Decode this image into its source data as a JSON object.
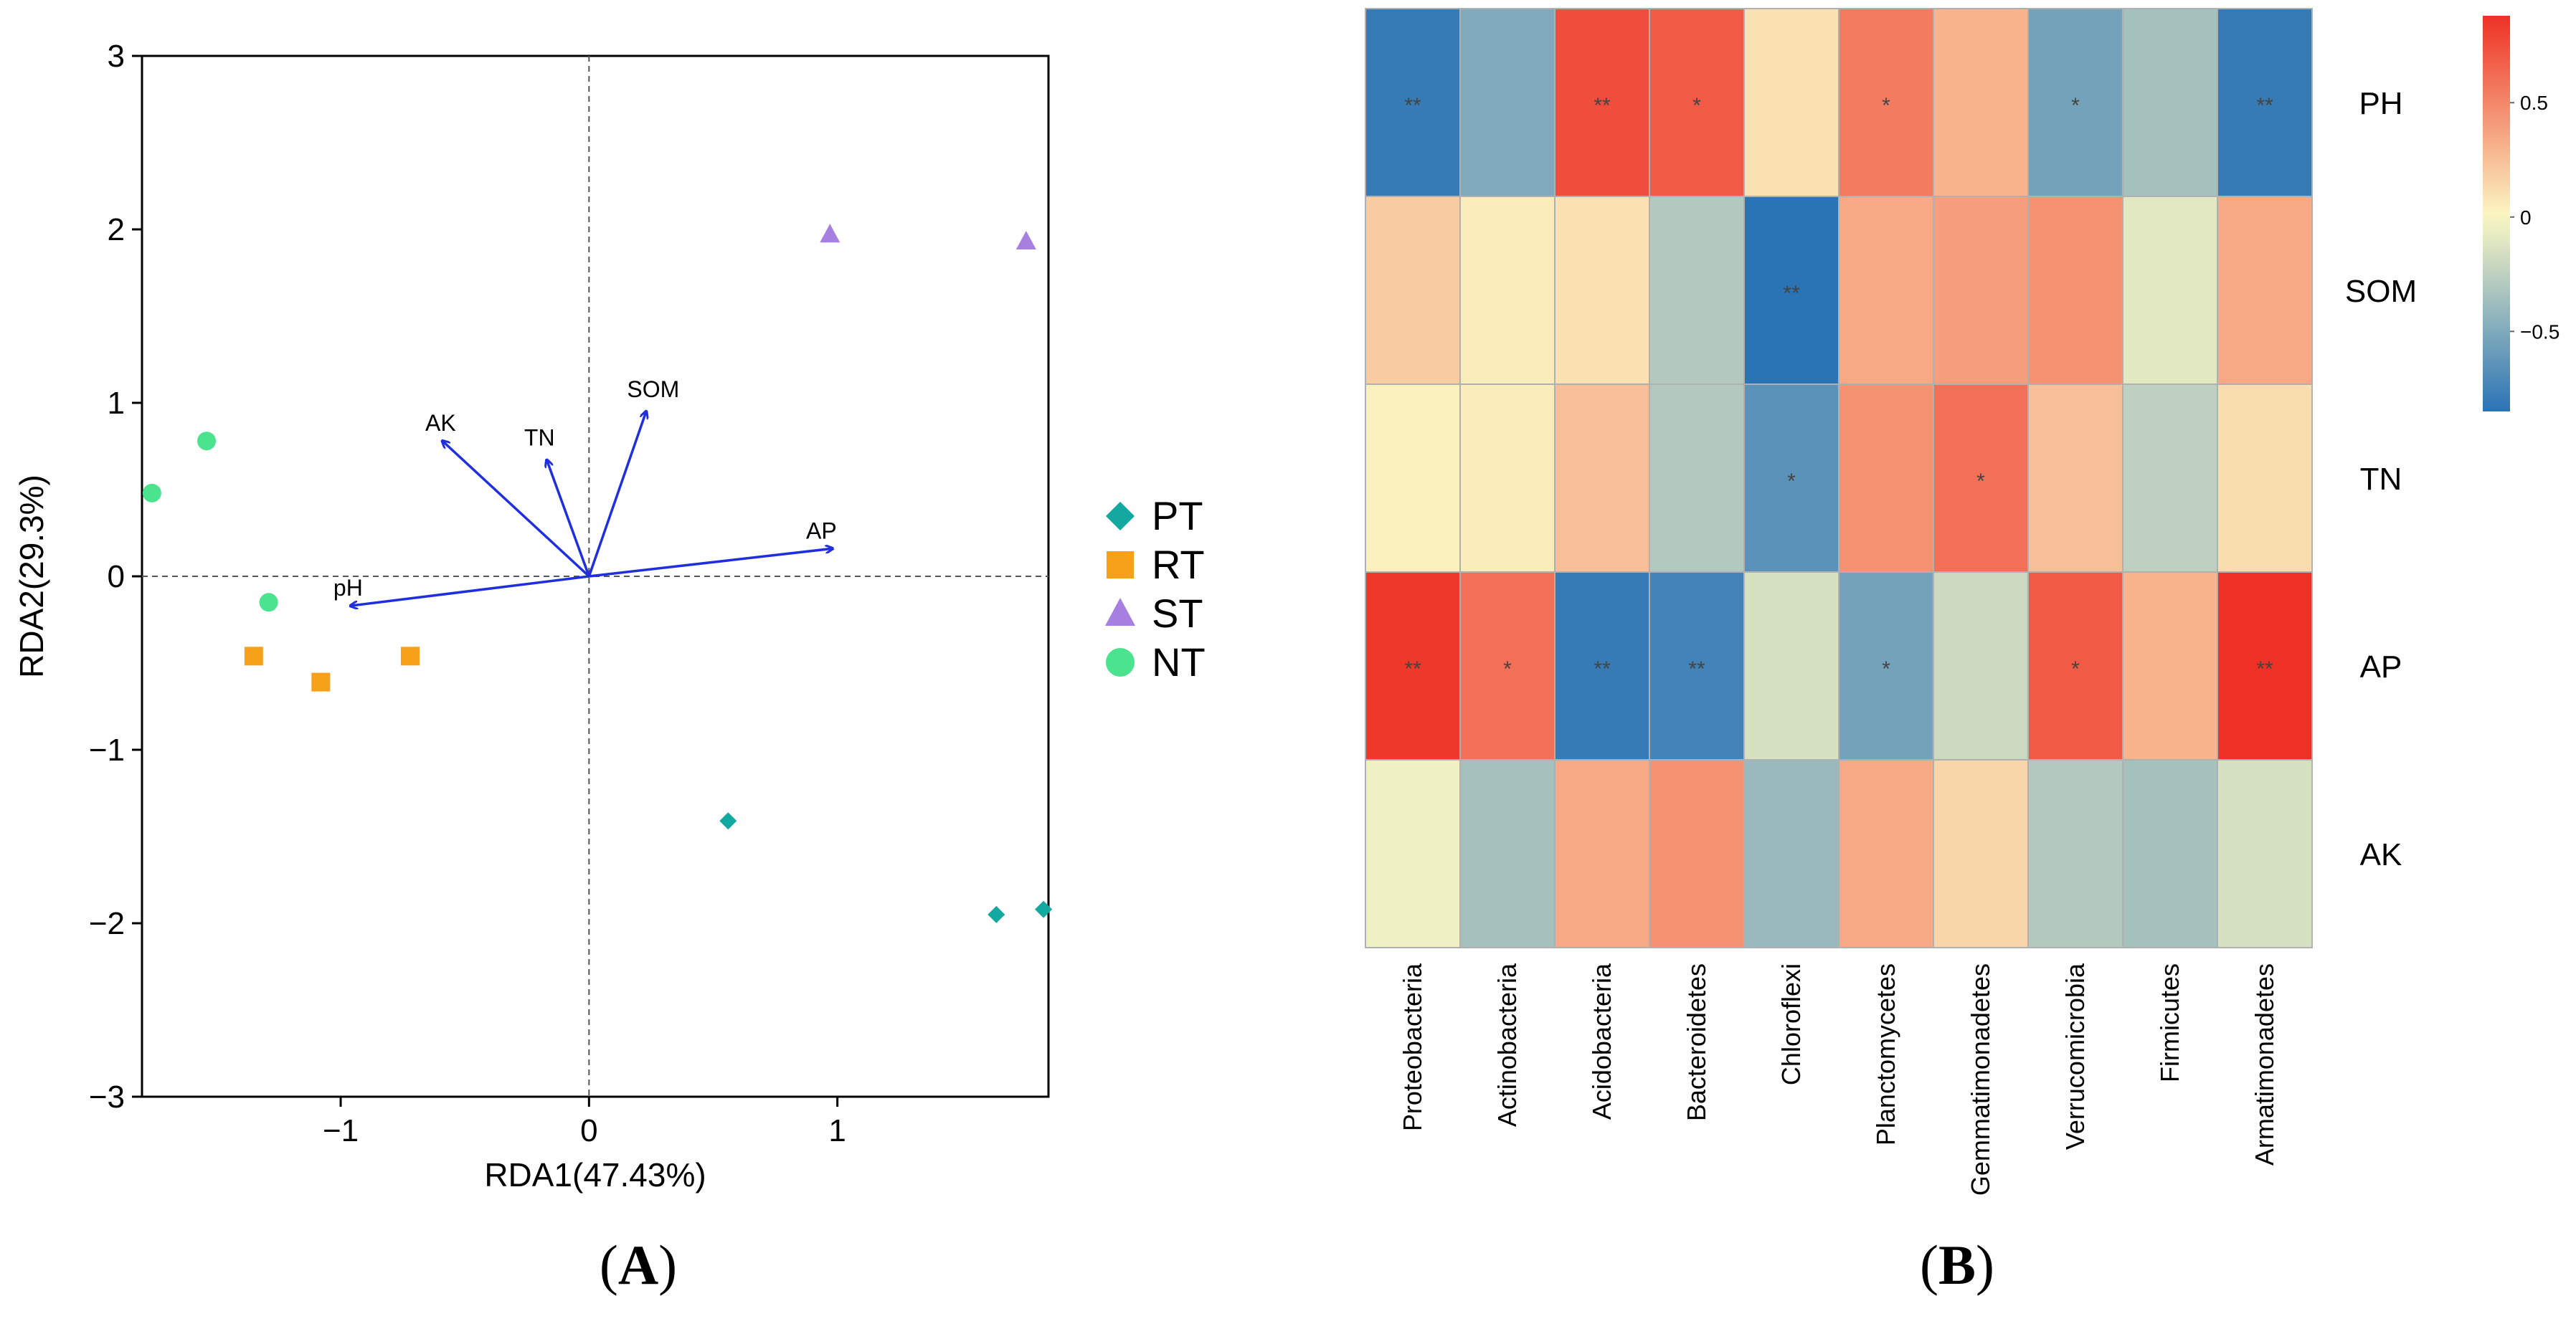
{
  "chart_data": [
    {
      "type": "scatter",
      "panel_label": "A",
      "xlabel": "RDA1(47.43%)",
      "ylabel": "RDA2(29.3%)",
      "xlim": [
        -1.8,
        1.85
      ],
      "ylim": [
        -3,
        3
      ],
      "xticks": [
        -1,
        0,
        1
      ],
      "yticks": [
        -3,
        -2,
        -1,
        0,
        1,
        2,
        3
      ],
      "xtick_labels": [
        "−1",
        "0",
        "1"
      ],
      "ytick_labels": [
        "−3",
        "−2",
        "−1",
        "0",
        "1",
        "2",
        "3"
      ],
      "reference_lines": {
        "x": 0,
        "y": 0,
        "style": "dashed"
      },
      "legend_position": "right",
      "series": [
        {
          "name": "PT",
          "marker": "diamond",
          "color": "#13a9a0",
          "points": [
            [
              0.56,
              -1.41
            ],
            [
              1.64,
              -1.95
            ],
            [
              1.83,
              -1.92
            ]
          ]
        },
        {
          "name": "RT",
          "marker": "square",
          "color": "#f7a11a",
          "points": [
            [
              -1.35,
              -0.46
            ],
            [
              -1.08,
              -0.61
            ],
            [
              -0.72,
              -0.46
            ]
          ]
        },
        {
          "name": "ST",
          "marker": "triangle",
          "color": "#a77fe0",
          "points": [
            [
              0.97,
              1.97
            ],
            [
              1.76,
              1.93
            ]
          ]
        },
        {
          "name": "NT",
          "marker": "circle",
          "color": "#4be38d",
          "points": [
            [
              -1.76,
              0.48
            ],
            [
              -1.54,
              0.78
            ],
            [
              -1.29,
              -0.15
            ]
          ]
        }
      ],
      "arrows": [
        {
          "label": "AK",
          "x": -0.59,
          "y": 0.78
        },
        {
          "label": "TN",
          "x": -0.17,
          "y": 0.67
        },
        {
          "label": "SOM",
          "x": 0.23,
          "y": 0.95
        },
        {
          "label": "AP",
          "x": 0.98,
          "y": 0.16
        },
        {
          "label": "pH",
          "x": -0.96,
          "y": -0.17
        }
      ],
      "arrow_color": "#1f2fe0"
    },
    {
      "type": "heatmap",
      "panel_label": "B",
      "columns": [
        "Proteobacteria",
        "Actinobacteria",
        "Acidobacteria",
        "Bacteroidetes",
        "Chloroflexi",
        "Planctomycetes",
        "Gemmatimonadetes",
        "Verrucomicrobia",
        "Firmicutes",
        "Armatimonadetes"
      ],
      "rows": [
        "PH",
        "SOM",
        "TN",
        "AP",
        "AK"
      ],
      "values": [
        [
          -0.8,
          -0.5,
          0.75,
          0.7,
          0.1,
          0.55,
          0.3,
          -0.55,
          -0.35,
          -0.8
        ],
        [
          0.2,
          0.05,
          0.1,
          -0.3,
          -0.85,
          0.35,
          0.4,
          0.45,
          -0.1,
          0.35
        ],
        [
          0.03,
          0.05,
          0.25,
          -0.3,
          -0.65,
          0.45,
          0.6,
          0.25,
          -0.25,
          0.12
        ],
        [
          0.85,
          0.6,
          -0.8,
          -0.75,
          -0.15,
          -0.55,
          -0.2,
          0.7,
          0.3,
          0.88
        ],
        [
          -0.05,
          -0.35,
          0.35,
          0.45,
          -0.4,
          0.35,
          0.15,
          -0.3,
          -0.35,
          -0.15
        ]
      ],
      "significance": [
        [
          "**",
          "",
          "**",
          "*",
          "",
          "*",
          "",
          "*",
          "",
          "**"
        ],
        [
          "",
          "",
          "",
          "",
          "**",
          "",
          "",
          "",
          "",
          ""
        ],
        [
          "",
          "",
          "",
          "",
          "*",
          "",
          "*",
          "",
          "",
          ""
        ],
        [
          "**",
          "*",
          "**",
          "**",
          "",
          "*",
          "",
          "*",
          "",
          "**"
        ],
        [
          "",
          "",
          "",
          "",
          "",
          "",
          "",
          "",
          "",
          ""
        ]
      ],
      "colorscale": {
        "min": -0.85,
        "max": 0.88,
        "low": "#2a73b5",
        "mid": "#fbf8c4",
        "high": "#ee3124"
      },
      "colorbar_ticks": [
        0.5,
        0,
        -0.5
      ],
      "colorbar_tick_labels": [
        "0.5",
        "0",
        "−0.5"
      ]
    }
  ]
}
